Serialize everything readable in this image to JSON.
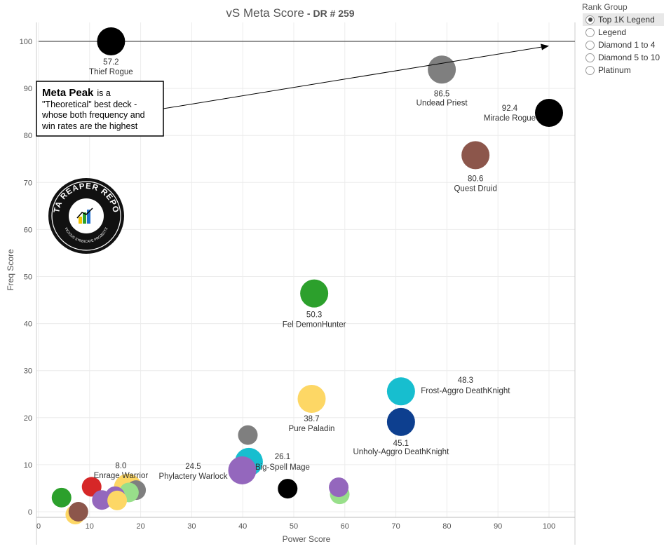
{
  "title": {
    "main": "vS Meta Score",
    "sub": "DR # 259"
  },
  "filter": {
    "title": "Rank Group",
    "options": [
      {
        "label": "Top 1K Legend",
        "selected": true
      },
      {
        "label": "Legend",
        "selected": false
      },
      {
        "label": "Diamond 1 to 4",
        "selected": false
      },
      {
        "label": "Diamond 5 to 10",
        "selected": false
      },
      {
        "label": "Platinum",
        "selected": false
      }
    ]
  },
  "annotation": {
    "bold": "Meta Peak",
    "line1": "is a",
    "line2": "\"Theoretical\" best deck -",
    "line3": "whose both frequency and",
    "line4": "win rates are the highest"
  },
  "logo": {
    "text": "DATA REAPER REPORT",
    "subtext": "VICIOUS SYNDICATE PROJECTS"
  },
  "chart_data": {
    "type": "scatter",
    "title": "vS Meta Score",
    "subtitle": "DR # 259",
    "xlabel": "Power Score",
    "ylabel": "Freq Score",
    "xlim": [
      0,
      105
    ],
    "ylim": [
      -1,
      105
    ],
    "xticks": [
      0,
      10,
      20,
      30,
      40,
      50,
      60,
      70,
      80,
      90,
      100
    ],
    "yticks": [
      0,
      10,
      20,
      30,
      40,
      50,
      60,
      70,
      80,
      90,
      100
    ],
    "grid": true,
    "reference_line_y": 100,
    "points": [
      {
        "x": 14.2,
        "y": 100,
        "color": "#000000",
        "score": "57.2",
        "name": "Thief Rogue"
      },
      {
        "x": 79,
        "y": 94,
        "color": "#7f7f7f",
        "score": "86.5",
        "name": "Undead Priest"
      },
      {
        "x": 100,
        "y": 84.8,
        "color": "#000000",
        "score": "92.4",
        "name": "Miracle Rogue"
      },
      {
        "x": 85.6,
        "y": 75.8,
        "color": "#8c564b",
        "score": "80.6",
        "name": "Quest Druid"
      },
      {
        "x": 54,
        "y": 46.4,
        "color": "#2ca02c",
        "score": "50.3",
        "name": "Fel DemonHunter"
      },
      {
        "x": 71,
        "y": 25.6,
        "color": "#17becf",
        "score": "48.3",
        "name": "Frost-Aggro DeathKnight"
      },
      {
        "x": 53.5,
        "y": 24,
        "color": "#fdd765",
        "score": "38.7",
        "name": "Pure Paladin"
      },
      {
        "x": 71,
        "y": 19.1,
        "color": "#0d3f8f",
        "score": "45.1",
        "name": "Unholy-Aggro DeathKnight"
      },
      {
        "x": 41,
        "y": 16.3,
        "color": "#7f7f7f",
        "score": "",
        "name": ""
      },
      {
        "x": 41.2,
        "y": 10.6,
        "color": "#17becf",
        "score": "26.1",
        "name": "Big-Spell Mage"
      },
      {
        "x": 39.9,
        "y": 8.8,
        "color": "#9467bd",
        "score": "24.5",
        "name": "Phylactery Warlock"
      },
      {
        "x": 48.8,
        "y": 4.9,
        "color": "#000000",
        "score": "",
        "name": ""
      },
      {
        "x": 59,
        "y": 3.7,
        "color": "#98df8a",
        "score": "",
        "name": ""
      },
      {
        "x": 58.8,
        "y": 5.2,
        "color": "#9467bd",
        "score": "",
        "name": ""
      },
      {
        "x": 10.4,
        "y": 5.3,
        "color": "#d62728",
        "score": "",
        "name": ""
      },
      {
        "x": 17.5,
        "y": 5.1,
        "color": "#fdd765",
        "score": "8.0",
        "name": "Enrage Warrior"
      },
      {
        "x": 19.1,
        "y": 4.6,
        "color": "#7f7f7f",
        "score": "",
        "name": ""
      },
      {
        "x": 17.7,
        "y": 4.1,
        "color": "#98df8a",
        "score": "",
        "name": ""
      },
      {
        "x": 15,
        "y": 3.3,
        "color": "#9467bd",
        "score": "",
        "name": ""
      },
      {
        "x": 12.4,
        "y": 2.5,
        "color": "#9467bd",
        "score": "",
        "name": ""
      },
      {
        "x": 4.5,
        "y": 3,
        "color": "#2ca02c",
        "score": "",
        "name": ""
      },
      {
        "x": 15.4,
        "y": 2.4,
        "color": "#fdd765",
        "score": "",
        "name": ""
      },
      {
        "x": 7.2,
        "y": -0.6,
        "color": "#fdd765",
        "score": "",
        "name": ""
      },
      {
        "x": 7.8,
        "y": 0,
        "color": "#8c564b",
        "score": "",
        "name": ""
      }
    ]
  }
}
